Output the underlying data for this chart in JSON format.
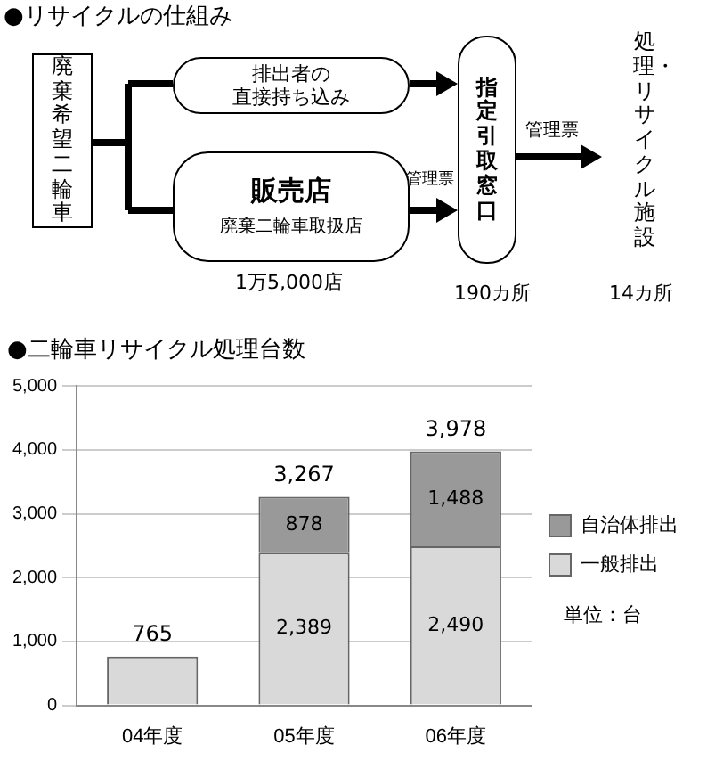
{
  "chart_data": [
    {
      "type": "other",
      "title": "●リサイクルの仕組み",
      "annotations": [
        "廃棄希望二輪車",
        "排出者の",
        "直接持ち込み",
        "販売店",
        "廃棄二輪車取扱店",
        "管理票",
        "指定引取窓口",
        "管理票",
        "処理・リサイクル施設",
        "1万5,000店",
        "190カ所",
        "14カ所"
      ]
    },
    {
      "type": "bar",
      "title": "●二輪車リサイクル処理台数",
      "categories": [
        "04年度",
        "05年度",
        "06年度"
      ],
      "stacked": true,
      "series": [
        {
          "name": "一般排出",
          "color": "#d9d9d9",
          "values": [
            765,
            2389,
            2490
          ],
          "value_labels": [
            null,
            "2,389",
            "2,490"
          ]
        },
        {
          "name": "自治体排出",
          "color": "#999999",
          "values": [
            null,
            878,
            1488
          ],
          "value_labels": [
            null,
            "878",
            "1,488"
          ]
        }
      ],
      "totals": [
        "765",
        "3,267",
        "3,978"
      ],
      "ylim": [
        0,
        5000
      ],
      "yticks": [
        0,
        {
          "value": 1000,
          "label": "1,000"
        },
        {
          "value": 2000,
          "label": "2,000"
        },
        {
          "value": 3000,
          "label": "3,000"
        },
        {
          "value": 4000,
          "label": "4,000"
        },
        {
          "value": 5000,
          "label": "5,000"
        }
      ],
      "grid": "y",
      "legend": "right",
      "annotations": [
        "単位：台"
      ]
    }
  ]
}
